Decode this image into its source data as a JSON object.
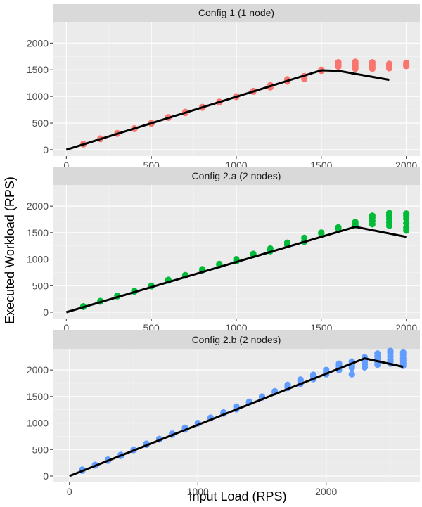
{
  "figure": {
    "xlabel": "Input Load (RPS)",
    "ylabel": "Executed Workload (RPS)"
  },
  "chart_data": [
    {
      "type": "scatter",
      "title": "Config 1 (1 node)",
      "xlim": [
        -80,
        2080
      ],
      "ylim": [
        -120,
        2400
      ],
      "xticks": [
        0,
        500,
        1000,
        1500,
        2000
      ],
      "yticks": [
        0,
        500,
        1000,
        1500,
        2000
      ],
      "color": "#F8766D",
      "points": [
        [
          100,
          100
        ],
        [
          100,
          110
        ],
        [
          200,
          200
        ],
        [
          200,
          210
        ],
        [
          300,
          300
        ],
        [
          300,
          310
        ],
        [
          400,
          400
        ],
        [
          400,
          390
        ],
        [
          500,
          500
        ],
        [
          500,
          490
        ],
        [
          600,
          600
        ],
        [
          600,
          610
        ],
        [
          700,
          690
        ],
        [
          700,
          710
        ],
        [
          800,
          800
        ],
        [
          800,
          790
        ],
        [
          900,
          900
        ],
        [
          900,
          890
        ],
        [
          1000,
          1000
        ],
        [
          1000,
          990
        ],
        [
          1100,
          1100
        ],
        [
          1100,
          1090
        ],
        [
          1200,
          1170
        ],
        [
          1200,
          1210
        ],
        [
          1300,
          1280
        ],
        [
          1300,
          1320
        ],
        [
          1400,
          1330
        ],
        [
          1400,
          1380
        ],
        [
          1500,
          1480
        ],
        [
          1500,
          1500
        ],
        [
          1600,
          1560
        ],
        [
          1600,
          1600
        ],
        [
          1600,
          1640
        ],
        [
          1700,
          1520
        ],
        [
          1700,
          1560
        ],
        [
          1700,
          1590
        ],
        [
          1700,
          1620
        ],
        [
          1700,
          1650
        ],
        [
          1800,
          1520
        ],
        [
          1800,
          1560
        ],
        [
          1800,
          1600
        ],
        [
          1800,
          1640
        ],
        [
          1900,
          1530
        ],
        [
          1900,
          1570
        ],
        [
          1900,
          1610
        ],
        [
          2000,
          1570
        ],
        [
          2000,
          1600
        ],
        [
          2000,
          1630
        ]
      ],
      "fit_line": [
        [
          0,
          0
        ],
        [
          1500,
          1490
        ],
        [
          1600,
          1480
        ],
        [
          1900,
          1310
        ]
      ]
    },
    {
      "type": "scatter",
      "title": "Config 2.a (2 nodes)",
      "xlim": [
        -80,
        2080
      ],
      "ylim": [
        -120,
        2400
      ],
      "xticks": [
        0,
        500,
        1000,
        1500,
        2000
      ],
      "yticks": [
        0,
        500,
        1000,
        1500,
        2000
      ],
      "color": "#00BA38",
      "points": [
        [
          100,
          100
        ],
        [
          100,
          110
        ],
        [
          200,
          200
        ],
        [
          200,
          210
        ],
        [
          300,
          300
        ],
        [
          300,
          310
        ],
        [
          400,
          400
        ],
        [
          400,
          390
        ],
        [
          500,
          500
        ],
        [
          500,
          490
        ],
        [
          600,
          600
        ],
        [
          600,
          610
        ],
        [
          700,
          700
        ],
        [
          700,
          690
        ],
        [
          800,
          790
        ],
        [
          800,
          810
        ],
        [
          900,
          890
        ],
        [
          900,
          910
        ],
        [
          1000,
          960
        ],
        [
          1000,
          1000
        ],
        [
          1100,
          1100
        ],
        [
          1100,
          1080
        ],
        [
          1200,
          1150
        ],
        [
          1200,
          1200
        ],
        [
          1300,
          1270
        ],
        [
          1300,
          1310
        ],
        [
          1400,
          1330
        ],
        [
          1400,
          1400
        ],
        [
          1500,
          1480
        ],
        [
          1500,
          1500
        ],
        [
          1600,
          1580
        ],
        [
          1600,
          1600
        ],
        [
          1700,
          1640
        ],
        [
          1700,
          1680
        ],
        [
          1700,
          1700
        ],
        [
          1800,
          1660
        ],
        [
          1800,
          1720
        ],
        [
          1800,
          1780
        ],
        [
          1800,
          1820
        ],
        [
          1900,
          1630
        ],
        [
          1900,
          1700
        ],
        [
          1900,
          1760
        ],
        [
          1900,
          1820
        ],
        [
          1900,
          1870
        ],
        [
          2000,
          1540
        ],
        [
          2000,
          1600
        ],
        [
          2000,
          1680
        ],
        [
          2000,
          1760
        ],
        [
          2000,
          1820
        ],
        [
          2000,
          1860
        ]
      ],
      "fit_line": [
        [
          0,
          0
        ],
        [
          1700,
          1610
        ],
        [
          2000,
          1420
        ]
      ]
    },
    {
      "type": "scatter",
      "title": "Config 2.b (2 nodes)",
      "xlim": [
        -130,
        2730
      ],
      "ylim": [
        -120,
        2400
      ],
      "xticks": [
        0,
        1000,
        2000
      ],
      "yticks": [
        0,
        500,
        1000,
        1500,
        2000
      ],
      "color": "#619CFF",
      "points": [
        [
          100,
          100
        ],
        [
          100,
          120
        ],
        [
          200,
          200
        ],
        [
          200,
          210
        ],
        [
          300,
          290
        ],
        [
          300,
          310
        ],
        [
          400,
          400
        ],
        [
          400,
          380
        ],
        [
          500,
          500
        ],
        [
          500,
          490
        ],
        [
          600,
          590
        ],
        [
          600,
          610
        ],
        [
          700,
          700
        ],
        [
          700,
          690
        ],
        [
          800,
          800
        ],
        [
          800,
          780
        ],
        [
          900,
          880
        ],
        [
          900,
          910
        ],
        [
          1000,
          1000
        ],
        [
          1000,
          990
        ],
        [
          1100,
          1100
        ],
        [
          1100,
          1090
        ],
        [
          1200,
          1200
        ],
        [
          1200,
          1180
        ],
        [
          1300,
          1260
        ],
        [
          1300,
          1310
        ],
        [
          1400,
          1400
        ],
        [
          1400,
          1390
        ],
        [
          1500,
          1480
        ],
        [
          1500,
          1500
        ],
        [
          1600,
          1580
        ],
        [
          1600,
          1600
        ],
        [
          1700,
          1660
        ],
        [
          1700,
          1700
        ],
        [
          1700,
          1720
        ],
        [
          1800,
          1740
        ],
        [
          1800,
          1790
        ],
        [
          1800,
          1820
        ],
        [
          1900,
          1830
        ],
        [
          1900,
          1880
        ],
        [
          1900,
          1910
        ],
        [
          2000,
          1920
        ],
        [
          2000,
          1960
        ],
        [
          2000,
          2000
        ],
        [
          2100,
          2000
        ],
        [
          2100,
          2040
        ],
        [
          2100,
          2080
        ],
        [
          2100,
          2120
        ],
        [
          2200,
          1920
        ],
        [
          2200,
          2040
        ],
        [
          2200,
          2080
        ],
        [
          2200,
          2120
        ],
        [
          2200,
          2160
        ],
        [
          2300,
          2050
        ],
        [
          2300,
          2100
        ],
        [
          2300,
          2150
        ],
        [
          2300,
          2200
        ],
        [
          2300,
          2240
        ],
        [
          2400,
          2100
        ],
        [
          2400,
          2150
        ],
        [
          2400,
          2200
        ],
        [
          2400,
          2260
        ],
        [
          2400,
          2310
        ],
        [
          2500,
          2120
        ],
        [
          2500,
          2160
        ],
        [
          2500,
          2200
        ],
        [
          2500,
          2260
        ],
        [
          2500,
          2320
        ],
        [
          2500,
          2360
        ],
        [
          2600,
          2080
        ],
        [
          2600,
          2130
        ],
        [
          2600,
          2180
        ],
        [
          2600,
          2230
        ],
        [
          2600,
          2290
        ],
        [
          2600,
          2330
        ]
      ],
      "fit_line": [
        [
          0,
          0
        ],
        [
          2300,
          2220
        ],
        [
          2600,
          2060
        ]
      ]
    }
  ]
}
